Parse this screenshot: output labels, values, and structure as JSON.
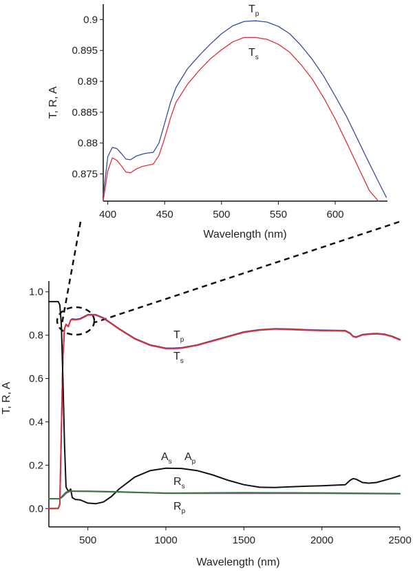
{
  "chart_data": [
    {
      "type": "line",
      "title": "",
      "xlabel": "Wavelength (nm)",
      "ylabel": "T, R, A",
      "xlim": [
        396,
        646
      ],
      "ylim": [
        0.8706,
        0.9025
      ],
      "xticks": [
        "400",
        "450",
        "500",
        "550",
        "600"
      ],
      "xtick_values": [
        400,
        450,
        500,
        550,
        600
      ],
      "yticks": [
        "0.875",
        "0.88",
        "0.885",
        "0.89",
        "0.895",
        "0.9"
      ],
      "ytick_values": [
        0.875,
        0.88,
        0.885,
        0.89,
        0.895,
        0.9
      ],
      "grid": false,
      "series": [
        {
          "name": "Tp",
          "label_main": "T",
          "label_sub": "p",
          "color": "#3b4a9c",
          "x": [
            396,
            400,
            404,
            408,
            412,
            416,
            420,
            425,
            430,
            435,
            440,
            445,
            450,
            455,
            460,
            470,
            480,
            490,
            500,
            510,
            520,
            530,
            540,
            550,
            560,
            570,
            580,
            590,
            600,
            610,
            620,
            630,
            640,
            645
          ],
          "y": [
            0.8715,
            0.8778,
            0.8793,
            0.8791,
            0.8783,
            0.8774,
            0.8773,
            0.8779,
            0.8782,
            0.8784,
            0.8785,
            0.88,
            0.8832,
            0.8865,
            0.889,
            0.892,
            0.8941,
            0.896,
            0.8977,
            0.899,
            0.8997,
            0.8998,
            0.8996,
            0.8989,
            0.8977,
            0.8958,
            0.8935,
            0.8908,
            0.8876,
            0.8843,
            0.8805,
            0.8767,
            0.873,
            0.8712
          ]
        },
        {
          "name": "Ts",
          "label_main": "T",
          "label_sub": "s",
          "color": "#d9313c",
          "x": [
            396,
            400,
            404,
            408,
            412,
            416,
            420,
            425,
            430,
            435,
            440,
            445,
            450,
            455,
            460,
            470,
            480,
            490,
            500,
            510,
            520,
            530,
            540,
            550,
            560,
            570,
            580,
            590,
            600,
            610,
            620,
            630,
            638
          ],
          "y": [
            0.8707,
            0.8755,
            0.8776,
            0.8772,
            0.8763,
            0.8753,
            0.8752,
            0.8758,
            0.8762,
            0.8764,
            0.8766,
            0.878,
            0.8808,
            0.884,
            0.8866,
            0.8895,
            0.8917,
            0.8936,
            0.8951,
            0.8964,
            0.8971,
            0.8971,
            0.8968,
            0.896,
            0.8947,
            0.8927,
            0.8903,
            0.8873,
            0.8839,
            0.8801,
            0.8762,
            0.8723,
            0.8706
          ]
        }
      ]
    },
    {
      "type": "line",
      "title": "",
      "xlabel": "Wavelength (nm)",
      "ylabel": "T, R, A",
      "xlim": [
        250,
        2500
      ],
      "ylim": [
        -0.085,
        1.05
      ],
      "xticks": [
        "500",
        "1000",
        "1500",
        "2000",
        "2500"
      ],
      "xtick_values": [
        500,
        1000,
        1500,
        2000,
        2500
      ],
      "yticks": [
        "0.0",
        "0.2",
        "0.4",
        "0.6",
        "0.8",
        "1.0"
      ],
      "ytick_values": [
        0,
        0.2,
        0.4,
        0.6,
        0.8,
        1.0
      ],
      "grid": false,
      "series": [
        {
          "name": "Tp",
          "color": "#3b4a9c",
          "x": [
            250,
            310,
            320,
            330,
            340,
            350,
            360,
            375,
            390,
            400,
            420,
            450,
            500,
            550,
            600,
            700,
            800,
            900,
            1000,
            1050,
            1100,
            1200,
            1300,
            1400,
            1500,
            1600,
            1700,
            1800,
            1900,
            2000,
            2100,
            2150,
            2180,
            2200,
            2220,
            2260,
            2300,
            2350,
            2400,
            2450,
            2500
          ],
          "y": [
            0.0,
            0.0,
            0.02,
            0.35,
            0.7,
            0.83,
            0.85,
            0.84,
            0.87,
            0.875,
            0.873,
            0.876,
            0.895,
            0.895,
            0.88,
            0.83,
            0.785,
            0.755,
            0.74,
            0.74,
            0.742,
            0.755,
            0.775,
            0.795,
            0.815,
            0.825,
            0.83,
            0.828,
            0.825,
            0.823,
            0.822,
            0.821,
            0.81,
            0.795,
            0.792,
            0.803,
            0.806,
            0.808,
            0.805,
            0.795,
            0.78
          ]
        },
        {
          "name": "Ts",
          "color": "#d9313c",
          "x": [
            250,
            310,
            320,
            330,
            340,
            350,
            360,
            375,
            390,
            400,
            420,
            450,
            500,
            550,
            600,
            700,
            800,
            900,
            1000,
            1050,
            1100,
            1200,
            1300,
            1400,
            1500,
            1600,
            1700,
            1800,
            1900,
            2000,
            2100,
            2150,
            2180,
            2200,
            2220,
            2260,
            2300,
            2350,
            2400,
            2450,
            2500
          ],
          "y": [
            0.0,
            0.0,
            0.02,
            0.35,
            0.7,
            0.83,
            0.85,
            0.84,
            0.87,
            0.873,
            0.871,
            0.874,
            0.893,
            0.893,
            0.878,
            0.828,
            0.783,
            0.753,
            0.738,
            0.738,
            0.74,
            0.753,
            0.773,
            0.793,
            0.813,
            0.823,
            0.828,
            0.826,
            0.823,
            0.821,
            0.82,
            0.819,
            0.808,
            0.793,
            0.79,
            0.801,
            0.804,
            0.806,
            0.803,
            0.793,
            0.778
          ]
        },
        {
          "name": "As / Ap",
          "color": "#111111",
          "x": [
            250,
            310,
            320,
            330,
            340,
            350,
            360,
            370,
            380,
            390,
            400,
            420,
            450,
            500,
            550,
            600,
            650,
            700,
            800,
            900,
            1000,
            1100,
            1200,
            1300,
            1400,
            1500,
            1600,
            1700,
            1800,
            1900,
            2000,
            2100,
            2150,
            2180,
            2200,
            2220,
            2260,
            2300,
            2350,
            2400,
            2450,
            2500
          ],
          "y": [
            0.955,
            0.955,
            0.94,
            0.85,
            0.6,
            0.3,
            0.1,
            0.085,
            0.08,
            0.09,
            0.05,
            0.042,
            0.04,
            0.025,
            0.022,
            0.03,
            0.055,
            0.09,
            0.145,
            0.175,
            0.186,
            0.185,
            0.175,
            0.155,
            0.13,
            0.11,
            0.098,
            0.097,
            0.1,
            0.103,
            0.105,
            0.108,
            0.11,
            0.13,
            0.138,
            0.135,
            0.12,
            0.117,
            0.12,
            0.13,
            0.14,
            0.152
          ]
        },
        {
          "name": "Rs",
          "color": "#a8449a",
          "x": [
            250,
            320,
            340,
            360,
            380,
            400,
            500,
            700,
            1000,
            1500,
            2000,
            2500
          ],
          "y": [
            0.045,
            0.045,
            0.055,
            0.07,
            0.078,
            0.08,
            0.08,
            0.077,
            0.07,
            0.07,
            0.07,
            0.068
          ]
        },
        {
          "name": "Rp",
          "color": "#2e7d3a",
          "x": [
            250,
            320,
            340,
            360,
            380,
            400,
            500,
            700,
            1000,
            1500,
            2000,
            2500
          ],
          "y": [
            0.045,
            0.045,
            0.06,
            0.075,
            0.08,
            0.08,
            0.079,
            0.076,
            0.071,
            0.073,
            0.072,
            0.069
          ]
        }
      ],
      "annotations": [
        {
          "main": "T",
          "sub": "p"
        },
        {
          "main": "T",
          "sub": "s"
        },
        {
          "main": "A",
          "sub": "s"
        },
        {
          "main": "A",
          "sub": "p"
        },
        {
          "main": "R",
          "sub": "s"
        },
        {
          "main": "R",
          "sub": "p"
        }
      ]
    }
  ]
}
